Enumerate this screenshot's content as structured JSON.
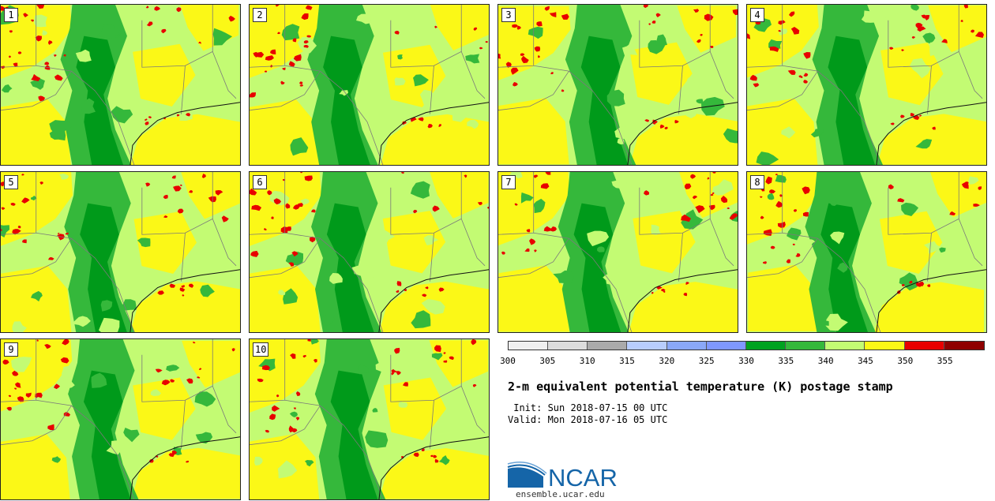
{
  "panels": [
    {
      "label": "1"
    },
    {
      "label": "2"
    },
    {
      "label": "3"
    },
    {
      "label": "4"
    },
    {
      "label": "5"
    },
    {
      "label": "6"
    },
    {
      "label": "7"
    },
    {
      "label": "8"
    },
    {
      "label": "9"
    },
    {
      "label": "10"
    }
  ],
  "colorbar": {
    "ticks": [
      "300",
      "305",
      "310",
      "315",
      "320",
      "325",
      "330",
      "335",
      "340",
      "345",
      "350",
      "355"
    ],
    "colors": [
      "#f0f0f0",
      "#dcdcdc",
      "#aaaaaa",
      "#b8cdfd",
      "#8aa8f8",
      "#7f98ff",
      "#00a220",
      "#35b83b",
      "#c3fb73",
      "#fbf817",
      "#e80000",
      "#8f0000"
    ]
  },
  "legend": {
    "title": "2-m equivalent potential temperature (K) postage stamp",
    "init_line": " Init: Sun 2018-07-15 00 UTC",
    "valid_line": "Valid: Mon 2018-07-16 05 UTC"
  },
  "logo": {
    "text": "NCAR",
    "site": "ensemble.ucar.edu"
  },
  "colors": {
    "dark_green": "#009a1a",
    "mid_green": "#35b83b",
    "light_green": "#c3fb73",
    "yellow": "#fbf817",
    "red": "#e80000",
    "boundary": "#7a7a7a",
    "coast": "#111111",
    "ncar_blue": "#1565a8"
  }
}
